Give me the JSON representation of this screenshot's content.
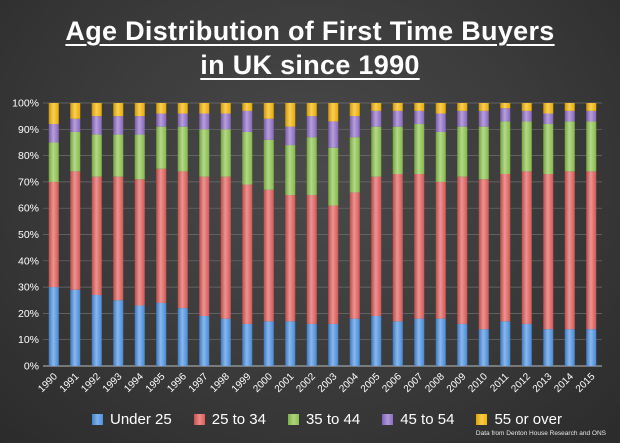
{
  "chart_data": {
    "type": "bar",
    "stacked": true,
    "title": "Age Distribution of First Time Buyers in UK since 1990",
    "title_lines": [
      "Age Distribution of First Time Buyers",
      "in UK since 1990"
    ],
    "categories": [
      "1990",
      "1991",
      "1992",
      "1993",
      "1994",
      "1995",
      "1996",
      "1997",
      "1998",
      "1999",
      "2000",
      "2001",
      "2002",
      "2003",
      "2004",
      "2005",
      "2006",
      "2007",
      "2008",
      "2009",
      "2010",
      "2011",
      "2012",
      "2013",
      "2014",
      "2015"
    ],
    "ylim": [
      0,
      100
    ],
    "yticks": [
      "0%",
      "10%",
      "20%",
      "30%",
      "40%",
      "50%",
      "60%",
      "70%",
      "80%",
      "90%",
      "100%"
    ],
    "grid": true,
    "legend_position": "bottom",
    "series": [
      {
        "name": "Under 25",
        "color": "#4a90e2",
        "values": [
          30,
          29,
          27,
          25,
          23,
          24,
          22,
          19,
          18,
          16,
          17,
          17,
          16,
          16,
          18,
          19,
          17,
          18,
          18,
          16,
          14,
          17,
          16,
          14,
          14,
          14
        ]
      },
      {
        "name": "25 to 34",
        "color": "#e05a57",
        "values": [
          40,
          45,
          45,
          47,
          48,
          51,
          52,
          53,
          54,
          53,
          50,
          48,
          49,
          45,
          48,
          53,
          56,
          55,
          52,
          56,
          57,
          56,
          58,
          59,
          60,
          60
        ]
      },
      {
        "name": "35 to 44",
        "color": "#8bc34a",
        "values": [
          15,
          15,
          16,
          16,
          17,
          16,
          17,
          18,
          18,
          20,
          19,
          19,
          22,
          22,
          21,
          19,
          18,
          19,
          19,
          19,
          20,
          20,
          19,
          19,
          19,
          19
        ]
      },
      {
        "name": "45 to 54",
        "color": "#8e6cc7",
        "values": [
          7,
          5,
          7,
          7,
          7,
          5,
          5,
          6,
          6,
          8,
          8,
          7,
          8,
          10,
          8,
          6,
          6,
          5,
          7,
          6,
          6,
          5,
          4,
          4,
          4,
          4
        ]
      },
      {
        "name": "55 or over",
        "color": "#f5b400",
        "values": [
          8,
          6,
          5,
          5,
          5,
          4,
          4,
          4,
          4,
          3,
          6,
          9,
          5,
          7,
          5,
          3,
          3,
          3,
          4,
          3,
          3,
          2,
          3,
          4,
          3,
          3
        ]
      }
    ]
  },
  "source_note": "Data from Denton House Research and ONS"
}
